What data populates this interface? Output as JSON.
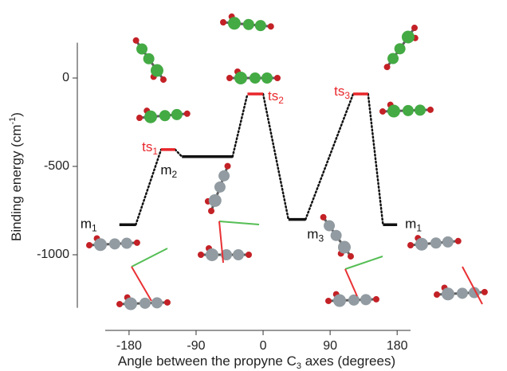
{
  "chart_data": {
    "type": "energy-levels",
    "ylabel": [
      "Binding energy (cm",
      "-1",
      ")"
    ],
    "xlabel": [
      "Angle between the propyne C",
      "3",
      " axes (degrees)"
    ],
    "xlim": [
      -212,
      198
    ],
    "xticks": [
      -180,
      -90,
      0,
      90,
      180
    ],
    "ylim": [
      -1300,
      200
    ],
    "yticks": [
      -1000,
      -500,
      0
    ],
    "connector_color": "#111111",
    "levels": [
      {
        "label": "m",
        "sub": "1",
        "x_start": -193,
        "x_end": -171,
        "energy": -830,
        "color": "#111111"
      },
      {
        "label": "ts",
        "sub": "1",
        "x_start": -137,
        "x_end": -118,
        "energy": -405,
        "color": "#e8262a"
      },
      {
        "label": "m",
        "sub": "2",
        "x_start": -109,
        "x_end": -41,
        "energy": -445,
        "color": "#111111"
      },
      {
        "label": "ts",
        "sub": "2",
        "x_start": -21,
        "x_end": 0,
        "energy": -90,
        "color": "#e8262a"
      },
      {
        "label": "m",
        "sub": "3",
        "x_start": 34,
        "x_end": 57,
        "energy": -800,
        "color": "#111111"
      },
      {
        "label": "ts",
        "sub": "3",
        "x_start": 121,
        "x_end": 141,
        "energy": -90,
        "color": "#e8262a"
      },
      {
        "label": "m",
        "sub": "1",
        "x_start": 161,
        "x_end": 180,
        "energy": -830,
        "color": "#111111"
      }
    ]
  }
}
